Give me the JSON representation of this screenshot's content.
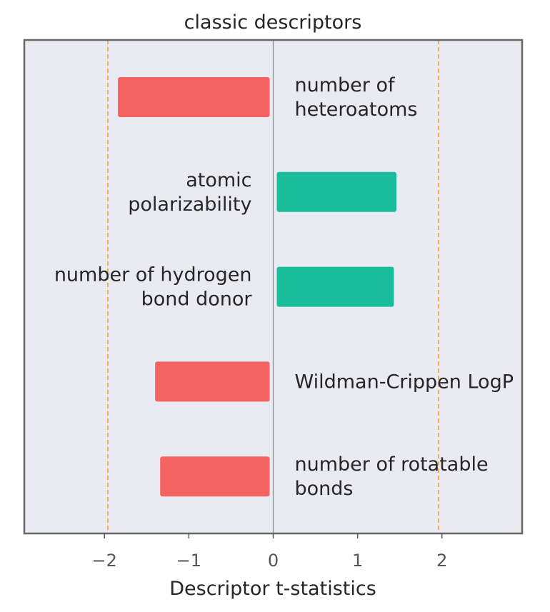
{
  "chart_data": {
    "type": "bar",
    "orientation": "horizontal",
    "title": "classic descriptors",
    "xlabel": "Descriptor t-statistics",
    "ylabel": "",
    "xlim": [
      -2.95,
      2.95
    ],
    "xticks": [
      -2,
      -1,
      0,
      1,
      2
    ],
    "xtick_labels": [
      "−2",
      "−1",
      "0",
      "1",
      "2"
    ],
    "reference_lines": [
      -1.96,
      1.96
    ],
    "grid": false,
    "categories": [
      {
        "lines": [
          "number of",
          "heteroatoms"
        ]
      },
      {
        "lines": [
          "atomic",
          "polarizability"
        ]
      },
      {
        "lines": [
          "number of hydrogen",
          "bond donor"
        ]
      },
      {
        "lines": [
          "Wildman-Crippen LogP"
        ]
      },
      {
        "lines": [
          "number of rotatable",
          "bonds"
        ]
      }
    ],
    "values": [
      -1.84,
      1.46,
      1.43,
      -1.4,
      -1.34
    ],
    "colors": {
      "negative": "#f26361",
      "positive": "#1abc9c",
      "reference_line": "#f0a030",
      "zero_line": "#888888",
      "plot_background": "#eaeaf2",
      "frame": "#666666"
    }
  }
}
